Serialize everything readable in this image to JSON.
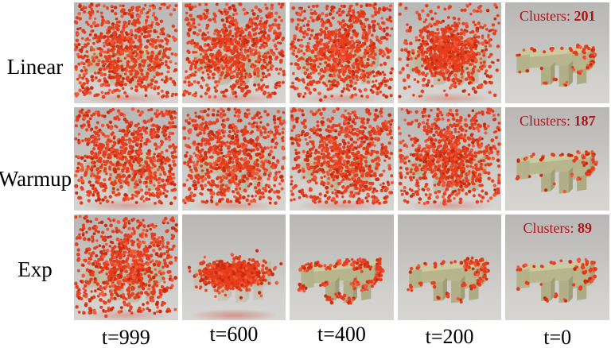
{
  "figure": {
    "rows": [
      {
        "label": "Linear",
        "clusters": "201"
      },
      {
        "label": "Warmup",
        "clusters": "187"
      },
      {
        "label": "Exp",
        "clusters": "89"
      }
    ],
    "time_labels": [
      "t=999",
      "t=600",
      "t=400",
      "t=200",
      "t=0"
    ],
    "clusters_prefix": "Clusters: ",
    "colors": {
      "point": "#e63d1d",
      "point_dark": "#c92b0f",
      "point_light": "#ef5838",
      "object_front": "#b6b489",
      "object_top": "#ccca9e",
      "object_side": "#a2a076",
      "cluster_text": "#b11414",
      "render_bg_top": "#b9b7b5",
      "render_bg_bottom": "#d7d5d2"
    },
    "cells": [
      [
        {
          "style": "noise",
          "points": 760,
          "center_bias": 0.3
        },
        {
          "style": "noise",
          "points": 780,
          "center_bias": 0.35
        },
        {
          "style": "noise",
          "points": 800,
          "center_bias": 0.42
        },
        {
          "style": "noise",
          "points": 820,
          "center_bias": 0.74,
          "sigma": [
            34,
            28
          ]
        },
        {
          "style": "object",
          "points": 70,
          "show_clusters": true
        }
      ],
      [
        {
          "style": "noise",
          "points": 760,
          "center_bias": 0.3
        },
        {
          "style": "noise",
          "points": 780,
          "center_bias": 0.32
        },
        {
          "style": "noise",
          "points": 790,
          "center_bias": 0.36
        },
        {
          "style": "noise",
          "points": 800,
          "center_bias": 0.52,
          "sigma": [
            40,
            34
          ]
        },
        {
          "style": "object",
          "points": 70,
          "show_clusters": true
        }
      ],
      [
        {
          "style": "noise",
          "points": 740,
          "center_bias": 0.42
        },
        {
          "style": "blob",
          "points": 850
        },
        {
          "style": "clumps",
          "points": 280
        },
        {
          "style": "object_heavy",
          "points": 100
        },
        {
          "style": "object",
          "points": 65,
          "show_clusters": true
        }
      ]
    ]
  }
}
